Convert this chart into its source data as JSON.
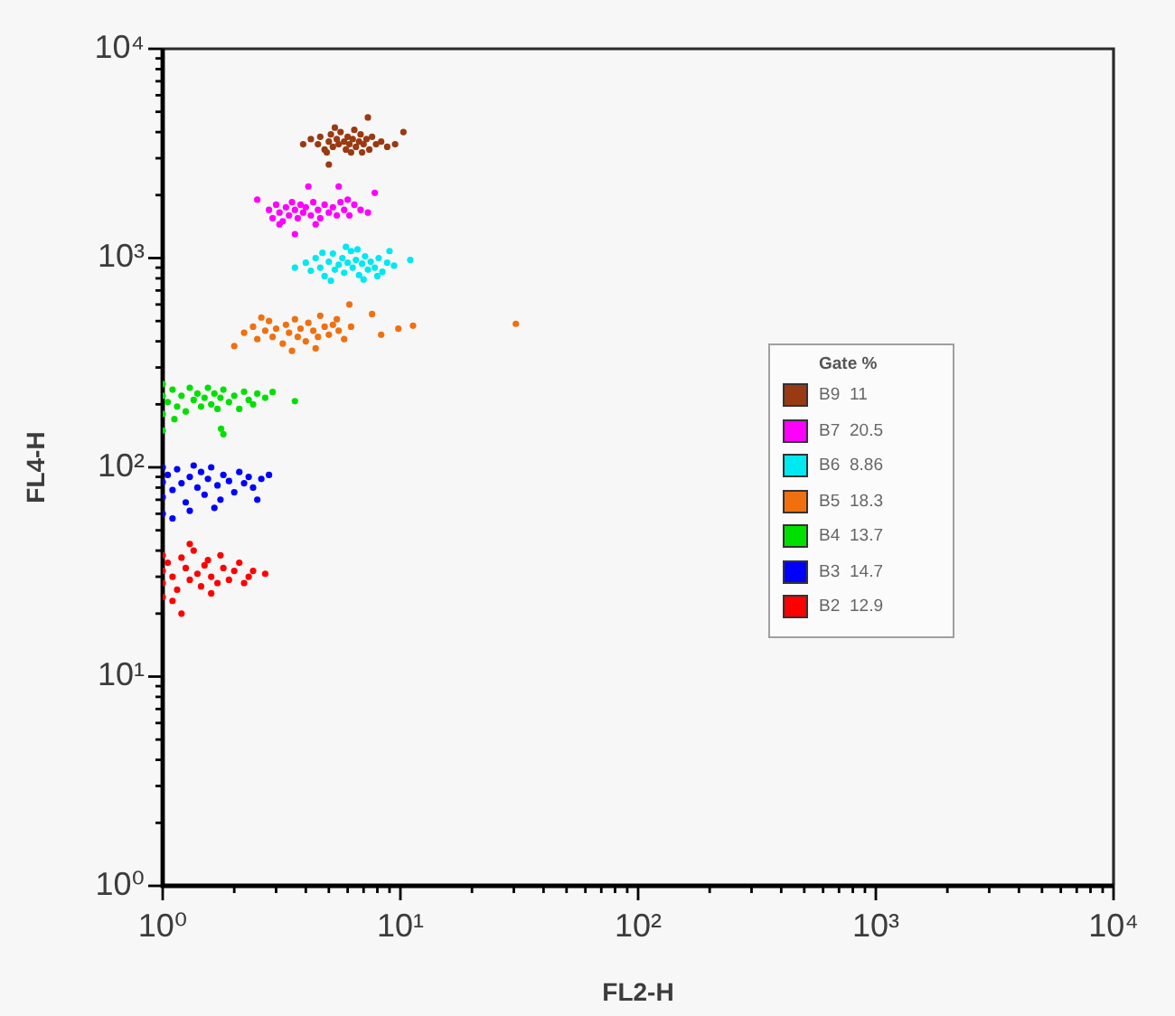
{
  "chart_data": {
    "type": "scatter",
    "xlabel": "FL2-H",
    "ylabel": "FL4-H",
    "log": "xy",
    "marker": "circle",
    "legend": "right",
    "legend_title": "Gate %",
    "xlim": [
      1,
      10000
    ],
    "ylim": [
      1,
      10000
    ],
    "xticks": [
      {
        "value": 1,
        "label": "10⁰"
      },
      {
        "value": 2,
        "label": null
      },
      {
        "value": 3,
        "label": null
      },
      {
        "value": 4,
        "label": null
      },
      {
        "value": 5,
        "label": null
      },
      {
        "value": 6,
        "label": null
      },
      {
        "value": 7,
        "label": null
      },
      {
        "value": 8,
        "label": null
      },
      {
        "value": 9,
        "label": null
      },
      {
        "value": 10,
        "label": "10¹"
      },
      {
        "value": 20,
        "label": null
      },
      {
        "value": 30,
        "label": null
      },
      {
        "value": 40,
        "label": null
      },
      {
        "value": 50,
        "label": null
      },
      {
        "value": 60,
        "label": null
      },
      {
        "value": 70,
        "label": null
      },
      {
        "value": 80,
        "label": null
      },
      {
        "value": 90,
        "label": null
      },
      {
        "value": 100,
        "label": "10²"
      },
      {
        "value": 200,
        "label": null
      },
      {
        "value": 300,
        "label": null
      },
      {
        "value": 400,
        "label": null
      },
      {
        "value": 500,
        "label": null
      },
      {
        "value": 600,
        "label": null
      },
      {
        "value": 700,
        "label": null
      },
      {
        "value": 800,
        "label": null
      },
      {
        "value": 900,
        "label": null
      },
      {
        "value": 1000,
        "label": "10³"
      },
      {
        "value": 2000,
        "label": null
      },
      {
        "value": 3000,
        "label": null
      },
      {
        "value": 4000,
        "label": null
      },
      {
        "value": 5000,
        "label": null
      },
      {
        "value": 6000,
        "label": null
      },
      {
        "value": 7000,
        "label": null
      },
      {
        "value": 8000,
        "label": null
      },
      {
        "value": 9000,
        "label": null
      },
      {
        "value": 10000,
        "label": "10⁴"
      }
    ],
    "yticks": [
      {
        "value": 1,
        "label": "10⁰"
      },
      {
        "value": 2,
        "label": null
      },
      {
        "value": 3,
        "label": null
      },
      {
        "value": 4,
        "label": null
      },
      {
        "value": 5,
        "label": null
      },
      {
        "value": 6,
        "label": null
      },
      {
        "value": 7,
        "label": null
      },
      {
        "value": 8,
        "label": null
      },
      {
        "value": 9,
        "label": null
      },
      {
        "value": 10,
        "label": "10¹"
      },
      {
        "value": 20,
        "label": null
      },
      {
        "value": 30,
        "label": null
      },
      {
        "value": 40,
        "label": null
      },
      {
        "value": 50,
        "label": null
      },
      {
        "value": 60,
        "label": null
      },
      {
        "value": 70,
        "label": null
      },
      {
        "value": 80,
        "label": null
      },
      {
        "value": 90,
        "label": null
      },
      {
        "value": 100,
        "label": "10²"
      },
      {
        "value": 200,
        "label": null
      },
      {
        "value": 300,
        "label": null
      },
      {
        "value": 400,
        "label": null
      },
      {
        "value": 500,
        "label": null
      },
      {
        "value": 600,
        "label": null
      },
      {
        "value": 700,
        "label": null
      },
      {
        "value": 800,
        "label": null
      },
      {
        "value": 900,
        "label": null
      },
      {
        "value": 1000,
        "label": "10³"
      },
      {
        "value": 2000,
        "label": null
      },
      {
        "value": 3000,
        "label": null
      },
      {
        "value": 4000,
        "label": null
      },
      {
        "value": 5000,
        "label": null
      },
      {
        "value": 6000,
        "label": null
      },
      {
        "value": 7000,
        "label": null
      },
      {
        "value": 8000,
        "label": null
      },
      {
        "value": 9000,
        "label": null
      },
      {
        "value": 10000,
        "label": "10⁴"
      }
    ],
    "annotations": [
      "11",
      "20.5",
      "8.86",
      "18.3",
      "13.7",
      "14.7",
      "12.9"
    ],
    "series": [
      {
        "name": "B9",
        "color": "#9a3a12",
        "x": [
          4.2,
          4.5,
          4.6,
          4.8,
          5.0,
          5.1,
          5.2,
          5.4,
          5.5,
          5.6,
          5.8,
          5.9,
          6.0,
          6.1,
          6.3,
          6.4,
          6.5,
          6.7,
          6.8,
          7.0,
          7.2,
          7.4,
          7.6,
          7.9,
          8.3,
          8.8,
          9.5,
          4.9,
          6.2,
          7.3,
          5.0,
          10.3,
          3.9,
          5.3,
          6.9
        ],
        "values": [
          3700,
          3500,
          3800,
          3300,
          3600,
          3900,
          3400,
          3700,
          3500,
          4000,
          3600,
          3300,
          3800,
          3500,
          3700,
          4100,
          3400,
          3600,
          3900,
          3500,
          3700,
          3300,
          3800,
          3500,
          3600,
          3400,
          3500,
          3200,
          3200,
          4700,
          2800,
          4000,
          3500,
          4200,
          3200
        ]
      },
      {
        "name": "B7",
        "color": "#ff00ff",
        "x": [
          2.8,
          2.9,
          3.0,
          3.1,
          3.2,
          3.3,
          3.4,
          3.5,
          3.6,
          3.7,
          3.8,
          3.9,
          4.0,
          4.2,
          4.3,
          4.5,
          4.6,
          4.8,
          5.0,
          5.2,
          5.4,
          5.6,
          5.8,
          6.1,
          6.4,
          6.8,
          7.3,
          7.8,
          4.1,
          5.5,
          2.5,
          3.6,
          4.4,
          3.1,
          6.0
        ],
        "values": [
          1700,
          1550,
          1800,
          1650,
          1500,
          1750,
          1600,
          1850,
          1700,
          1550,
          1800,
          1650,
          1750,
          1600,
          1850,
          1700,
          1550,
          1800,
          1650,
          1750,
          1600,
          1850,
          1700,
          1600,
          1800,
          1700,
          1650,
          2050,
          2200,
          2200,
          1900,
          1300,
          1450,
          1450,
          1900
        ]
      },
      {
        "name": "B6",
        "color": "#00e8f0",
        "x": [
          4.0,
          4.2,
          4.4,
          4.6,
          4.8,
          5.0,
          5.2,
          5.3,
          5.5,
          5.7,
          5.8,
          6.0,
          6.2,
          6.3,
          6.5,
          6.7,
          6.9,
          7.1,
          7.3,
          7.5,
          7.8,
          8.1,
          8.4,
          8.8,
          9.0,
          11,
          3.6,
          5.1,
          6.6,
          7.0,
          4.7,
          8.0,
          5.9,
          9.4
        ],
        "values": [
          950,
          870,
          1000,
          900,
          820,
          960,
          1050,
          880,
          930,
          1000,
          850,
          950,
          1080,
          900,
          980,
          830,
          940,
          1020,
          880,
          960,
          900,
          1000,
          860,
          950,
          1080,
          980,
          900,
          780,
          1100,
          790,
          1060,
          820,
          1130,
          920
        ]
      },
      {
        "name": "B5",
        "color": "#f07010",
        "x": [
          2.0,
          2.2,
          2.4,
          2.5,
          2.7,
          2.8,
          2.9,
          3.0,
          3.2,
          3.3,
          3.4,
          3.6,
          3.7,
          3.8,
          4.0,
          4.1,
          4.3,
          4.5,
          4.6,
          4.8,
          5.0,
          5.2,
          5.5,
          5.8,
          6.1,
          6.2,
          7.6,
          8.3,
          9.8,
          11.3,
          30.6,
          3.5,
          4.4,
          5.4,
          2.6
        ],
        "values": [
          380,
          440,
          470,
          410,
          450,
          500,
          420,
          460,
          390,
          480,
          440,
          510,
          420,
          460,
          400,
          490,
          450,
          420,
          530,
          470,
          430,
          480,
          450,
          410,
          600,
          470,
          540,
          430,
          460,
          475,
          485,
          360,
          370,
          510,
          520
        ]
      },
      {
        "name": "B4",
        "color": "#00e000",
        "x": [
          1.0,
          1.0,
          1.0,
          1.0,
          1.05,
          1.1,
          1.15,
          1.2,
          1.25,
          1.3,
          1.35,
          1.4,
          1.45,
          1.5,
          1.55,
          1.6,
          1.65,
          1.7,
          1.75,
          1.8,
          1.9,
          2.0,
          2.1,
          2.2,
          2.3,
          2.5,
          2.7,
          2.9,
          3.6,
          1.8,
          1.76,
          1.12,
          2.4
        ],
        "values": [
          220,
          180,
          250,
          150,
          205,
          235,
          195,
          220,
          185,
          240,
          210,
          225,
          195,
          215,
          240,
          200,
          225,
          190,
          215,
          235,
          205,
          220,
          190,
          230,
          210,
          225,
          215,
          229,
          207,
          144,
          153,
          170,
          200
        ]
      },
      {
        "name": "B3",
        "color": "#0000ff",
        "x": [
          1.0,
          1.0,
          1.0,
          1.0,
          1.05,
          1.1,
          1.15,
          1.2,
          1.25,
          1.3,
          1.35,
          1.4,
          1.45,
          1.5,
          1.55,
          1.6,
          1.7,
          1.75,
          1.8,
          1.9,
          2.0,
          2.1,
          2.2,
          2.3,
          2.4,
          2.6,
          2.5,
          1.3,
          1.65,
          2.8,
          1.1
        ],
        "values": [
          85,
          60,
          100,
          72,
          92,
          78,
          98,
          84,
          68,
          90,
          102,
          80,
          95,
          74,
          88,
          100,
          82,
          70,
          92,
          86,
          76,
          95,
          84,
          90,
          80,
          88,
          70,
          62,
          64,
          92,
          57
        ]
      },
      {
        "name": "B2",
        "color": "#ff0000",
        "x": [
          1.0,
          1.0,
          1.0,
          1.0,
          1.05,
          1.1,
          1.15,
          1.2,
          1.25,
          1.3,
          1.35,
          1.4,
          1.45,
          1.5,
          1.55,
          1.6,
          1.7,
          1.75,
          1.8,
          1.9,
          2.0,
          2.1,
          2.2,
          2.4,
          2.7,
          1.2,
          1.1,
          1.6,
          1.3,
          2.3
        ],
        "values": [
          32,
          24,
          38,
          28,
          35,
          30,
          26,
          37,
          33,
          29,
          40,
          31,
          27,
          34,
          36,
          30,
          28,
          38,
          33,
          29,
          32,
          35,
          28,
          32,
          31,
          20,
          23,
          25,
          43,
          30
        ]
      }
    ]
  }
}
